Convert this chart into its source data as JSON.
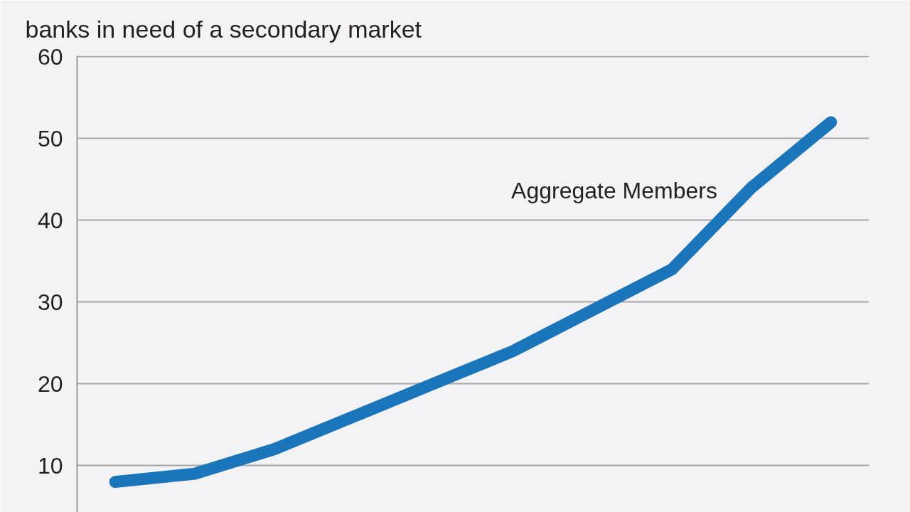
{
  "chart_data": {
    "type": "line",
    "title": "banks in need of a secondary market",
    "categories": [
      null,
      null,
      null,
      null,
      null,
      null,
      null,
      null,
      null,
      null
    ],
    "series": [
      {
        "name": "Aggregate Members",
        "color": "#1b75bb",
        "values": [
          8,
          9,
          12,
          16,
          20,
          24,
          29,
          34,
          44,
          52
        ]
      }
    ],
    "ylim": [
      4.4,
      60
    ],
    "yticks": [
      10,
      20,
      30,
      40,
      50,
      60
    ],
    "grid": "y",
    "tick_labels": "y"
  }
}
